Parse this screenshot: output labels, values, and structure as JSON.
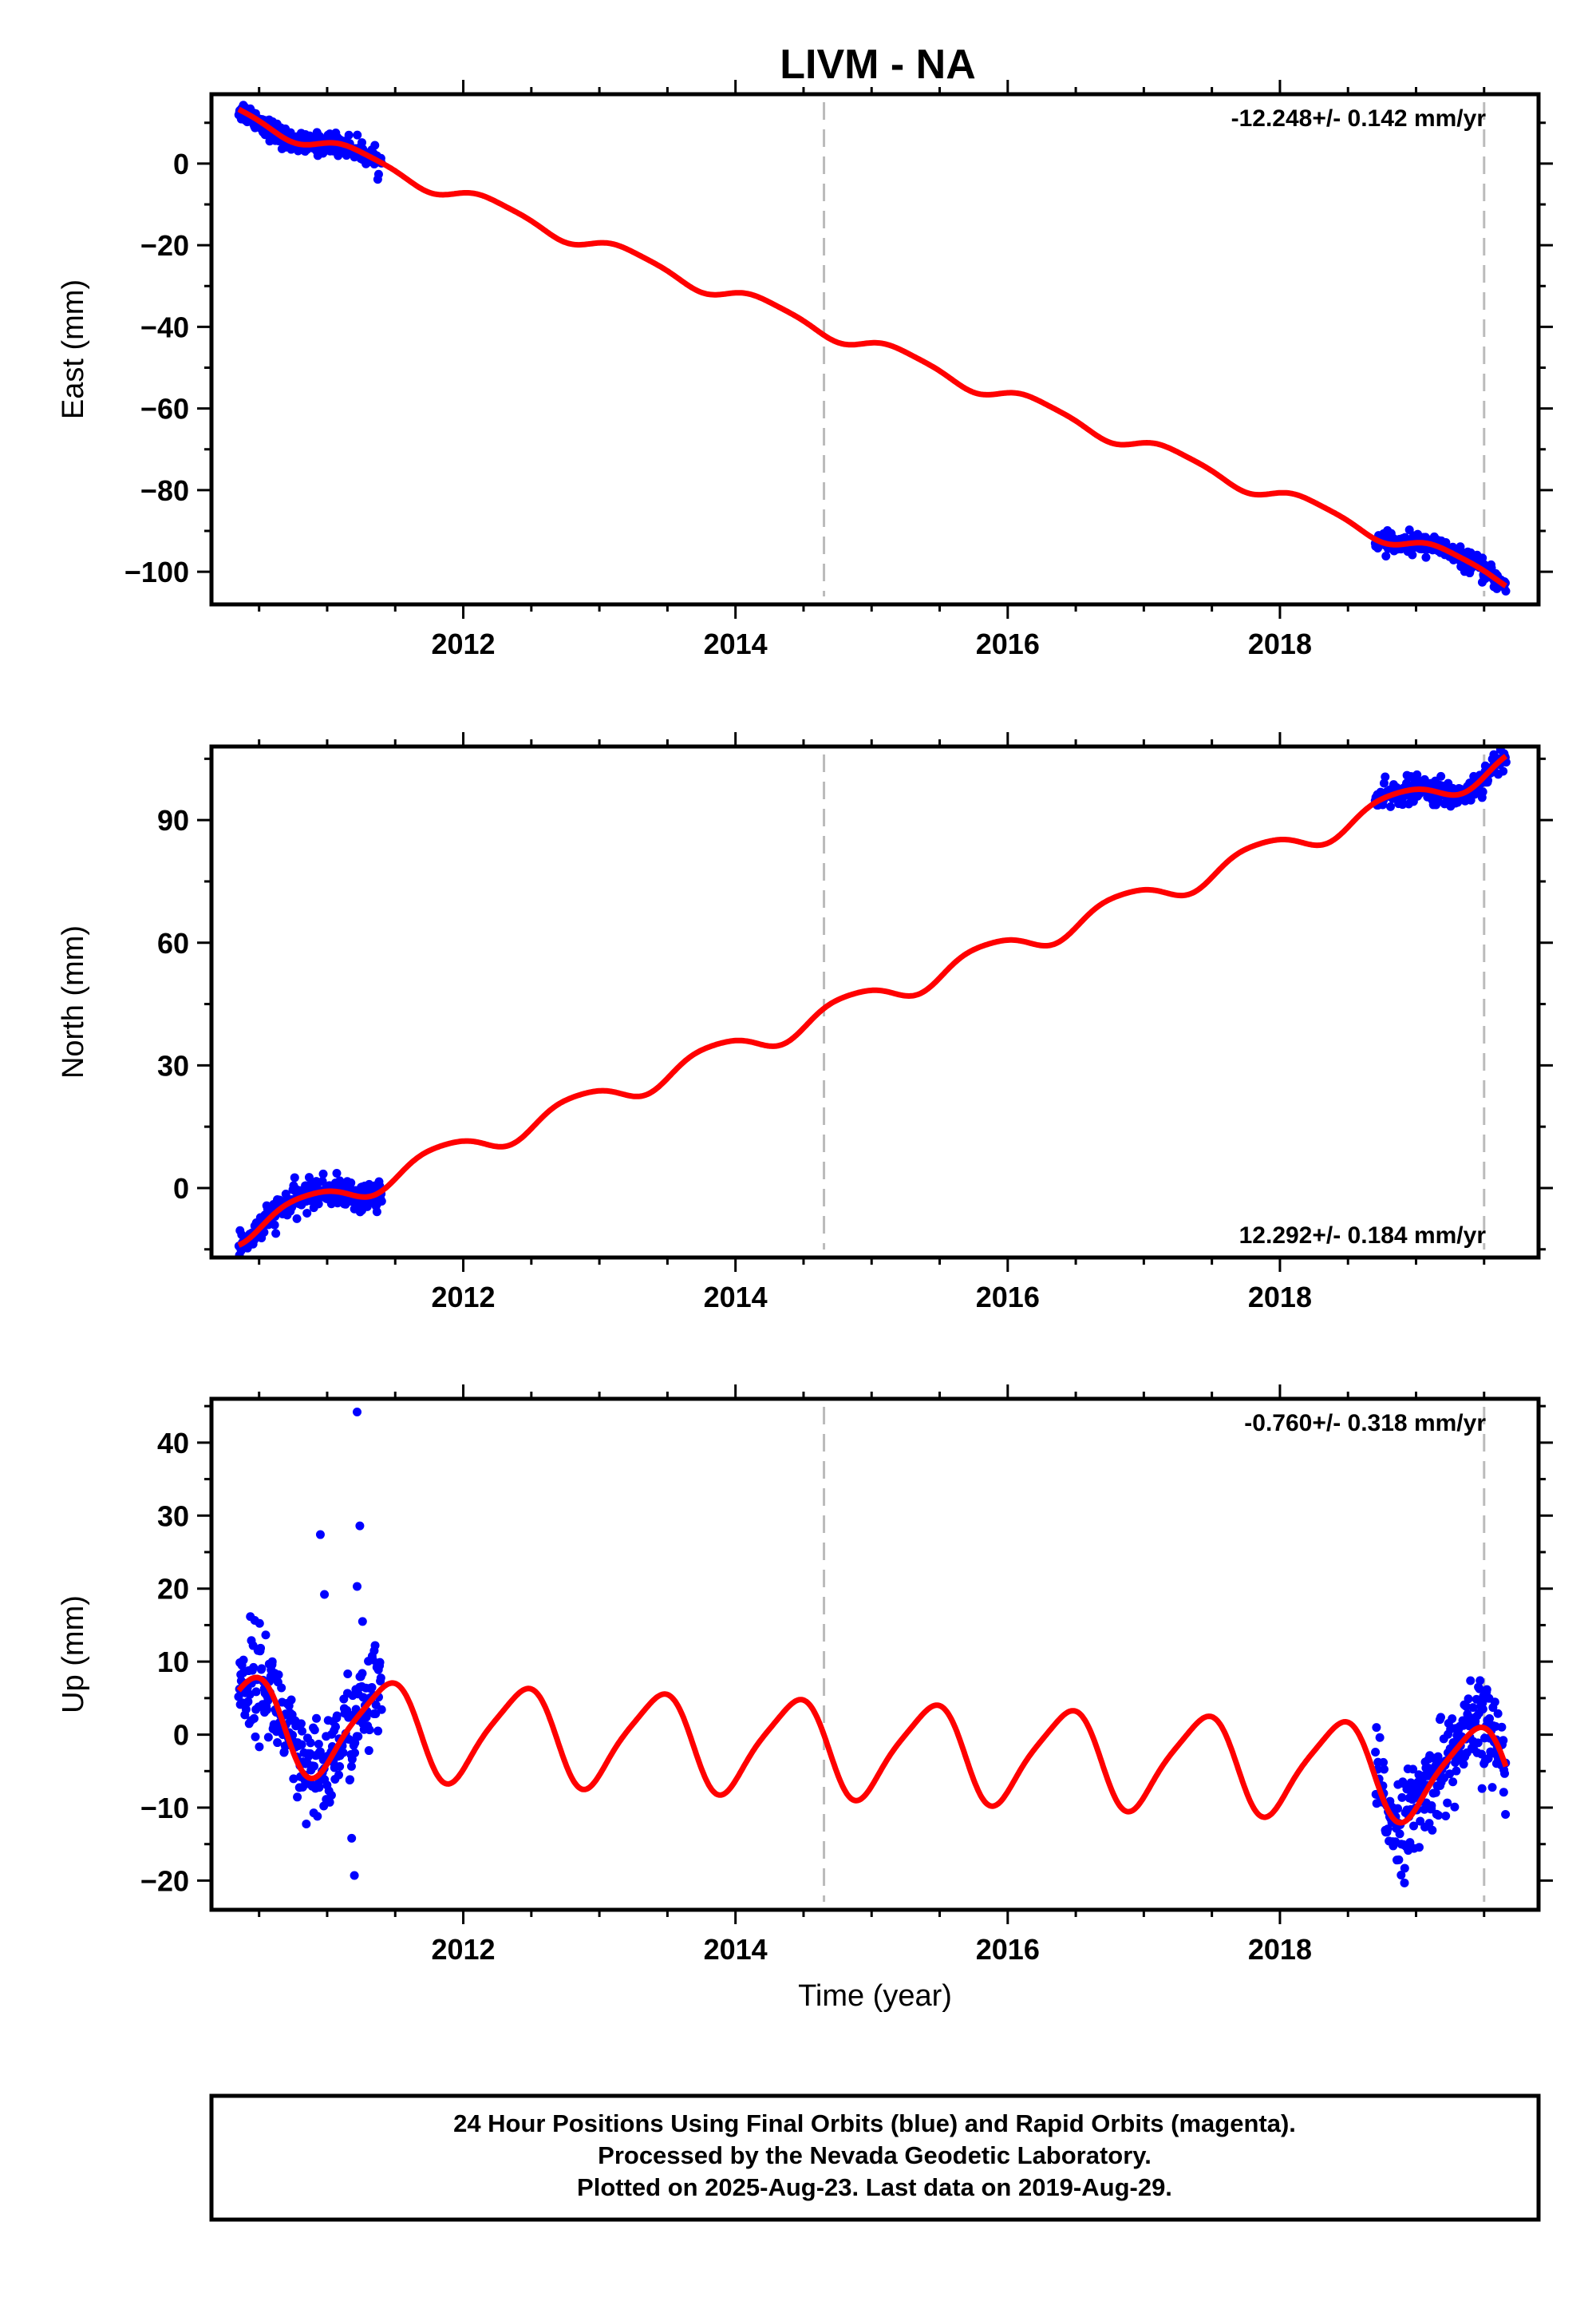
{
  "title": "LIVM - NA",
  "footer": {
    "lines": [
      "24 Hour Positions Using Final Orbits (blue) and Rapid Orbits (magenta).",
      "Processed by the Nevada Geodetic Laboratory.",
      "Plotted on 2025-Aug-23. Last data on 2019-Aug-29."
    ]
  },
  "colors": {
    "data": "#0000ff",
    "model": "#ff0000",
    "ref_line": "#bbbbbb"
  },
  "chart_data": [
    {
      "type": "scatter",
      "id": "east",
      "ylabel": "East (mm)",
      "xlim": [
        2010.15,
        2019.9
      ],
      "ylim": [
        -108,
        17
      ],
      "xticks": [
        2012,
        2014,
        2016,
        2018
      ],
      "yticks": [
        0,
        -20,
        -40,
        -60,
        -80,
        -100
      ],
      "ytick_labels": [
        "0",
        "−20",
        "−40",
        "−60",
        "−80",
        "−100"
      ],
      "rate_label": "-12.248+/- 0.142 mm/yr",
      "rate_position": "top-right",
      "vlines": [
        2014.65,
        2019.5
      ],
      "model": {
        "trend": -12.248,
        "offset": 12.3,
        "t0": 2010.35,
        "annual_amp": 1.9,
        "annual_phase": 0.2,
        "semi_amp": 0.4,
        "semi_phase": 1.1,
        "tend": 2019.66
      },
      "data_segments": [
        {
          "t_start": 2010.35,
          "t_end": 2011.4,
          "scatter": 1.3,
          "n": 240
        },
        {
          "t_start": 2018.7,
          "t_end": 2019.66,
          "scatter": 1.2,
          "n": 220
        }
      ]
    },
    {
      "type": "scatter",
      "id": "north",
      "ylabel": "North (mm)",
      "xlim": [
        2010.15,
        2019.9
      ],
      "ylim": [
        -17,
        108
      ],
      "xticks": [
        2012,
        2014,
        2016,
        2018
      ],
      "yticks": [
        0,
        30,
        60,
        90
      ],
      "ytick_labels": [
        "0",
        "30",
        "60",
        "90"
      ],
      "rate_label": "12.292+/- 0.184 mm/yr",
      "rate_position": "bottom-right",
      "vlines": [
        2014.65,
        2019.5
      ],
      "model": {
        "trend": 12.292,
        "offset": -10.5,
        "t0": 2010.35,
        "annual_amp": 3.0,
        "annual_phase": 2.6,
        "semi_amp": 0.5,
        "semi_phase": 0.3,
        "tend": 2019.66
      },
      "data_segments": [
        {
          "t_start": 2010.35,
          "t_end": 2011.4,
          "scatter": 1.8,
          "n": 240
        },
        {
          "t_start": 2018.7,
          "t_end": 2019.66,
          "scatter": 1.6,
          "n": 220
        }
      ]
    },
    {
      "type": "scatter",
      "id": "up",
      "ylabel": "Up (mm)",
      "xlabel": "Time (year)",
      "xlim": [
        2010.15,
        2019.9
      ],
      "ylim": [
        -24,
        46
      ],
      "xticks": [
        2012,
        2014,
        2016,
        2018
      ],
      "yticks": [
        -20,
        -10,
        0,
        10,
        20,
        30,
        40
      ],
      "ytick_labels": [
        "−20",
        "−10",
        "0",
        "10",
        "20",
        "30",
        "40"
      ],
      "rate_label": "-0.760+/- 0.318 mm/yr",
      "rate_position": "top-right",
      "vlines": [
        2014.65,
        2019.5
      ],
      "model": {
        "trend": -0.76,
        "offset": 1.5,
        "t0": 2010.35,
        "annual_amp": 6.4,
        "annual_phase": -1.1,
        "semi_amp": 1.2,
        "semi_phase": 0.6,
        "tend": 2019.66
      },
      "data_segments": [
        {
          "t_start": 2010.35,
          "t_end": 2011.4,
          "scatter": 3.6,
          "n": 260
        },
        {
          "t_start": 2018.7,
          "t_end": 2019.66,
          "scatter": 3.2,
          "n": 230
        }
      ],
      "outliers": [
        [
          2011.22,
          44.2
        ],
        [
          2011.24,
          28.6
        ],
        [
          2011.22,
          20.3
        ],
        [
          2010.95,
          27.4
        ],
        [
          2011.2,
          -19.3
        ],
        [
          2010.98,
          19.2
        ],
        [
          2011.26,
          15.5
        ],
        [
          2011.18,
          -14.2
        ]
      ]
    }
  ]
}
